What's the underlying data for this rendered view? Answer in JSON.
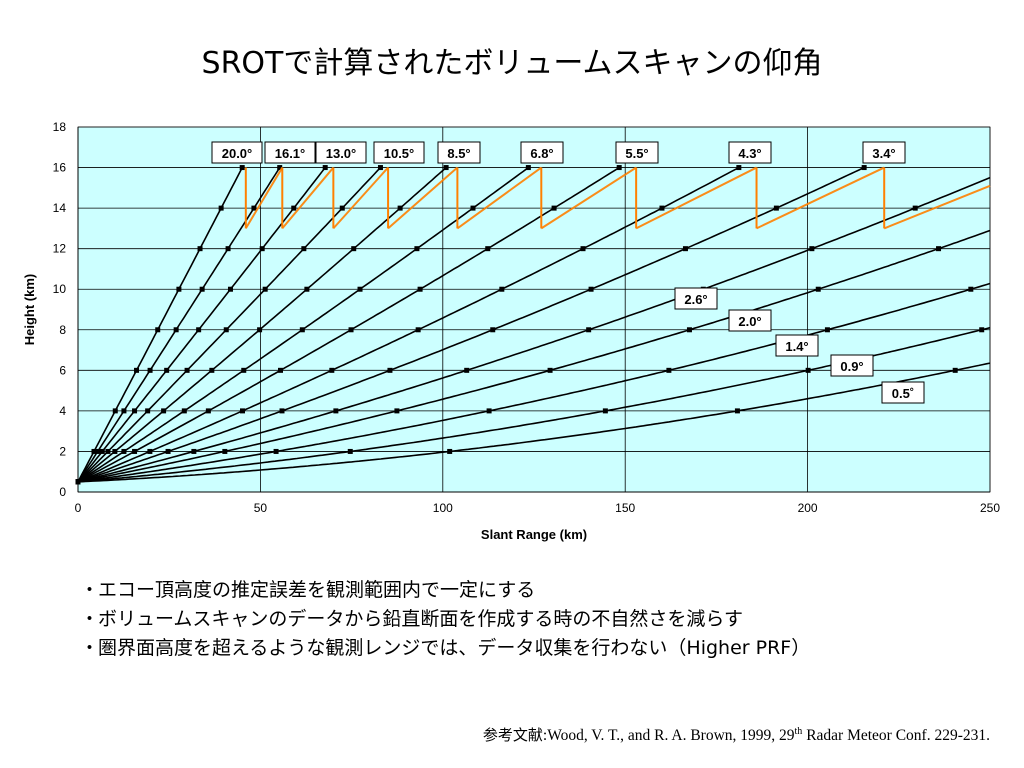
{
  "slide": {
    "title": "SROTで計算されたボリュームスキャンの仰角"
  },
  "bullets": [
    "エコー頂高度の推定誤差を観測範囲内で一定にする",
    "ボリュームスキャンのデータから鉛直断面を作成する時の不自然さを減らす",
    "圏界面高度を超えるような観測レンジでは、データ収集を行わない（Higher PRF）"
  ],
  "bullet_marker": "・",
  "reference": {
    "label": "参考文献",
    "sep": ":",
    "text_a": "Wood, V. T., and R. A. Brown, 1999, 29",
    "sup": "th",
    "text_b": " Radar Meteor Conf. 229-231."
  },
  "colors": {
    "plot_bg": "#ccffff",
    "beam_line": "#000000",
    "switch_line": "#ff8000",
    "grid": "#000000"
  },
  "chart_data": {
    "type": "line",
    "xlabel": "Slant Range (km)",
    "ylabel": "Height (km)",
    "xlim": [
      0,
      250
    ],
    "ylim": [
      0,
      18
    ],
    "xticks": [
      0,
      50,
      100,
      150,
      200,
      250
    ],
    "yticks": [
      0,
      2,
      4,
      6,
      8,
      10,
      12,
      14,
      16,
      18
    ],
    "grid": "vertical and horizontal",
    "series": [
      {
        "name": "0.5°",
        "elev": 0.5
      },
      {
        "name": "0.9°",
        "elev": 0.9
      },
      {
        "name": "1.4°",
        "elev": 1.4
      },
      {
        "name": "2.0°",
        "elev": 2.0
      },
      {
        "name": "2.6°",
        "elev": 2.6
      },
      {
        "name": "3.4°",
        "elev": 3.4
      },
      {
        "name": "4.3°",
        "elev": 4.3
      },
      {
        "name": "5.5°",
        "elev": 5.5
      },
      {
        "name": "6.8°",
        "elev": 6.8
      },
      {
        "name": "8.5°",
        "elev": 8.5
      },
      {
        "name": "10.5°",
        "elev": 10.5
      },
      {
        "name": "13.0°",
        "elev": 13.0
      },
      {
        "name": "16.1°",
        "elev": 16.1
      },
      {
        "name": "20.0°",
        "elev": 20.0
      }
    ],
    "scan_switch_ranges_km": [
      46,
      56,
      70,
      85,
      104,
      127,
      153,
      186,
      221
    ],
    "scan_switch_height_range_km": [
      13,
      16
    ],
    "marker_spacing_km": [
      40,
      20,
      14,
      10,
      7,
      6,
      5,
      4,
      3,
      3,
      2,
      2,
      1.5,
      1.2
    ],
    "labels_top": [
      "20.0°",
      "16.1°",
      "13.0°",
      "10.5°",
      "8.5°",
      "6.8°",
      "5.5°",
      "4.3°",
      "3.4°"
    ],
    "labels_side": [
      "2.6°",
      "2.0°",
      "1.4°",
      "0.9°",
      "0.5˚"
    ]
  }
}
